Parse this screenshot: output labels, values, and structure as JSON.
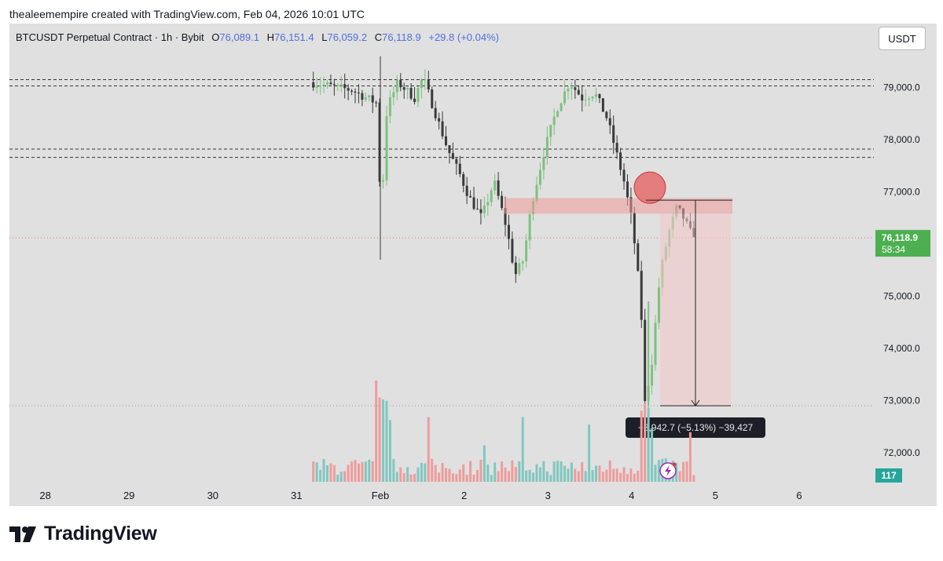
{
  "header": {
    "credit": "thealeemempire created with TradingView.com, Feb 04, 2026 10:01 UTC"
  },
  "legend": {
    "symbol": "BTCUSDT Perpetual Contract · 1h · Bybit",
    "o_label": "O",
    "o_value": "76,089.1",
    "h_label": "H",
    "h_value": "76,151.4",
    "l_label": "L",
    "l_value": "76,059.2",
    "c_label": "C",
    "c_value": "76,118.9",
    "change": "+29.8 (+0.04%)"
  },
  "currency_button": "USDT",
  "price_label": {
    "price": "76,118.9",
    "countdown": "58:34"
  },
  "volume_label": "117",
  "measure_label": "−3,942.7 (−5.13%) −39,427",
  "brand": "TradingView",
  "colors": {
    "up": "#7ec17e",
    "down": "#3a3a3a",
    "vol_up": "#7fc8c0",
    "vol_down": "#ee9c9c",
    "zone": "#ef9a9a",
    "accent": "#4caf50"
  },
  "chart_data": {
    "type": "candlestick",
    "symbol": "BTCUSDT Perpetual Contract",
    "timeframe": "1h",
    "exchange": "Bybit",
    "x_ticks": [
      "28",
      "29",
      "30",
      "31",
      "Feb",
      "2",
      "3",
      "4",
      "5",
      "6"
    ],
    "y_ticks": [
      "79,000.0",
      "78,000.0",
      "77,000.0",
      "76,000.0",
      "75,000.0",
      "74,000.0",
      "73,000.0",
      "72,000.0"
    ],
    "ylim": [
      71600,
      79600
    ],
    "last_price": 76118.9,
    "resistance_lines": [
      79150,
      79030,
      77820,
      77660
    ],
    "support_line": 72900,
    "supply_zone": [
      76580,
      76880
    ],
    "projection": {
      "from": 76840,
      "to": 72900,
      "change": "−3,942.7 (−5.13%)"
    },
    "volume_last": 117,
    "price_path": [
      [
        -0.8,
        79100
      ],
      [
        -0.3,
        78950
      ],
      [
        0.0,
        78700
      ],
      [
        0.05,
        76500
      ],
      [
        0.12,
        78600
      ],
      [
        0.25,
        79100
      ],
      [
        0.45,
        78800
      ],
      [
        0.55,
        79200
      ],
      [
        0.7,
        78500
      ],
      [
        0.85,
        77800
      ],
      [
        1.0,
        77300
      ],
      [
        1.1,
        76900
      ],
      [
        1.25,
        76500
      ],
      [
        1.4,
        77200
      ],
      [
        1.55,
        76300
      ],
      [
        1.65,
        75400
      ],
      [
        1.75,
        75700
      ],
      [
        1.85,
        76800
      ],
      [
        2.0,
        77800
      ],
      [
        2.15,
        78600
      ],
      [
        2.3,
        79100
      ],
      [
        2.45,
        78800
      ],
      [
        2.6,
        78900
      ],
      [
        2.75,
        78400
      ],
      [
        2.85,
        77800
      ],
      [
        2.95,
        77200
      ],
      [
        3.05,
        76400
      ],
      [
        3.15,
        74900
      ],
      [
        3.2,
        72950
      ],
      [
        3.28,
        73700
      ],
      [
        3.38,
        75400
      ],
      [
        3.48,
        76200
      ],
      [
        3.58,
        76700
      ],
      [
        3.66,
        76500
      ],
      [
        3.75,
        76200
      ]
    ]
  }
}
